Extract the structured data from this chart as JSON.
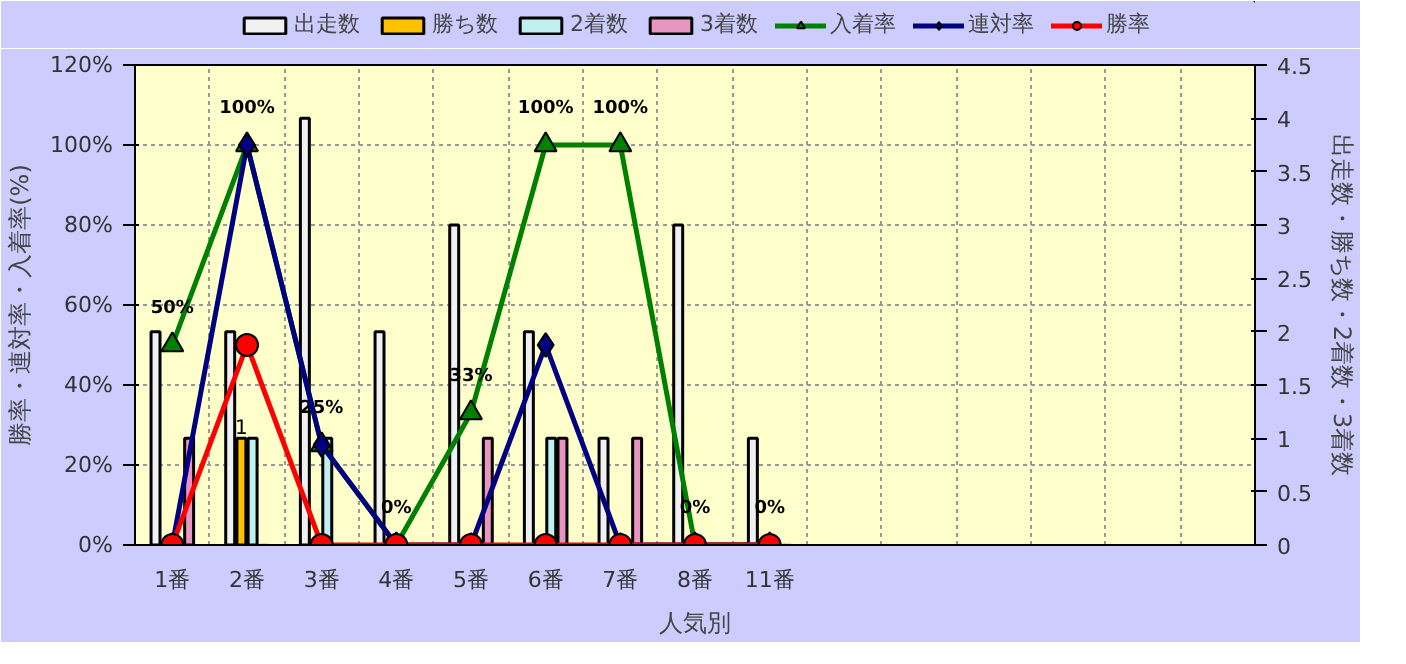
{
  "chart_data": {
    "type": "bar",
    "xlabel": "人気別",
    "ylabel": "勝率・連対率・入着率(%)",
    "y2label": "出走数・勝ち数・2着数・3着数",
    "categories": [
      "1番",
      "2番",
      "3番",
      "4番",
      "5番",
      "6番",
      "7番",
      "8番",
      "11番",
      null,
      null,
      null,
      null,
      null,
      null
    ],
    "series": [
      {
        "name": "出走数",
        "axis": "y2",
        "color": "#f0f0f0",
        "values": [
          2,
          2,
          4,
          2,
          3,
          2,
          1,
          3,
          1,
          null,
          null,
          null,
          null,
          null,
          null
        ]
      },
      {
        "name": "勝ち数",
        "axis": "y2",
        "color": "#ffc000",
        "values": [
          0,
          1,
          0,
          0,
          0,
          0,
          0,
          0,
          0,
          null,
          null,
          null,
          null,
          null,
          null
        ],
        "value_labels": [
          null,
          "1",
          null,
          null,
          null,
          null,
          null,
          null,
          null,
          null,
          null,
          null,
          null,
          null,
          null
        ]
      },
      {
        "name": "2着数",
        "axis": "y2",
        "color": "#c0f0f0",
        "values": [
          0,
          1,
          1,
          0,
          0,
          1,
          0,
          0,
          0,
          null,
          null,
          null,
          null,
          null,
          null
        ]
      },
      {
        "name": "3着数",
        "axis": "y2",
        "color": "#e896c0",
        "values": [
          1,
          0,
          0,
          0,
          1,
          1,
          1,
          0,
          0,
          null,
          null,
          null,
          null,
          null,
          null
        ]
      },
      {
        "name": "入着率",
        "type": "line",
        "color": "#008000",
        "marker": "triangle",
        "values": [
          50,
          100,
          25,
          0,
          33,
          100,
          100,
          0,
          0,
          null,
          null,
          null,
          null,
          null,
          null
        ],
        "value_labels": [
          "50%",
          "100%",
          "25%",
          "0%",
          "33%",
          "100%",
          "100%",
          "0%",
          "0%",
          null,
          null,
          null,
          null,
          null,
          null
        ]
      },
      {
        "name": "連対率",
        "type": "line",
        "color": "#000080",
        "marker": "diamond",
        "values": [
          0,
          100,
          25,
          0,
          0,
          50,
          0,
          0,
          0,
          null,
          null,
          null,
          null,
          null,
          null
        ]
      },
      {
        "name": "勝率",
        "type": "line",
        "color": "#ff0000",
        "marker": "circle",
        "values": [
          0,
          50,
          0,
          0,
          0,
          0,
          0,
          0,
          0,
          null,
          null,
          null,
          null,
          null,
          null
        ]
      }
    ],
    "ylim": [
      0,
      120
    ],
    "yticks": [
      {
        "value": 0,
        "label": "0%"
      },
      {
        "value": 20,
        "label": "20%"
      },
      {
        "value": 40,
        "label": "40%"
      },
      {
        "value": 60,
        "label": "60%"
      },
      {
        "value": 80,
        "label": "80%"
      },
      {
        "value": 100,
        "label": "100%"
      },
      {
        "value": 120,
        "label": "120%"
      }
    ],
    "y2lim": [
      0,
      4.5
    ],
    "y2ticks": [
      0,
      0.5,
      1,
      1.5,
      2,
      2.5,
      3,
      3.5,
      4,
      4.5
    ],
    "grid": true,
    "legend": "top",
    "line_style": "solid"
  }
}
